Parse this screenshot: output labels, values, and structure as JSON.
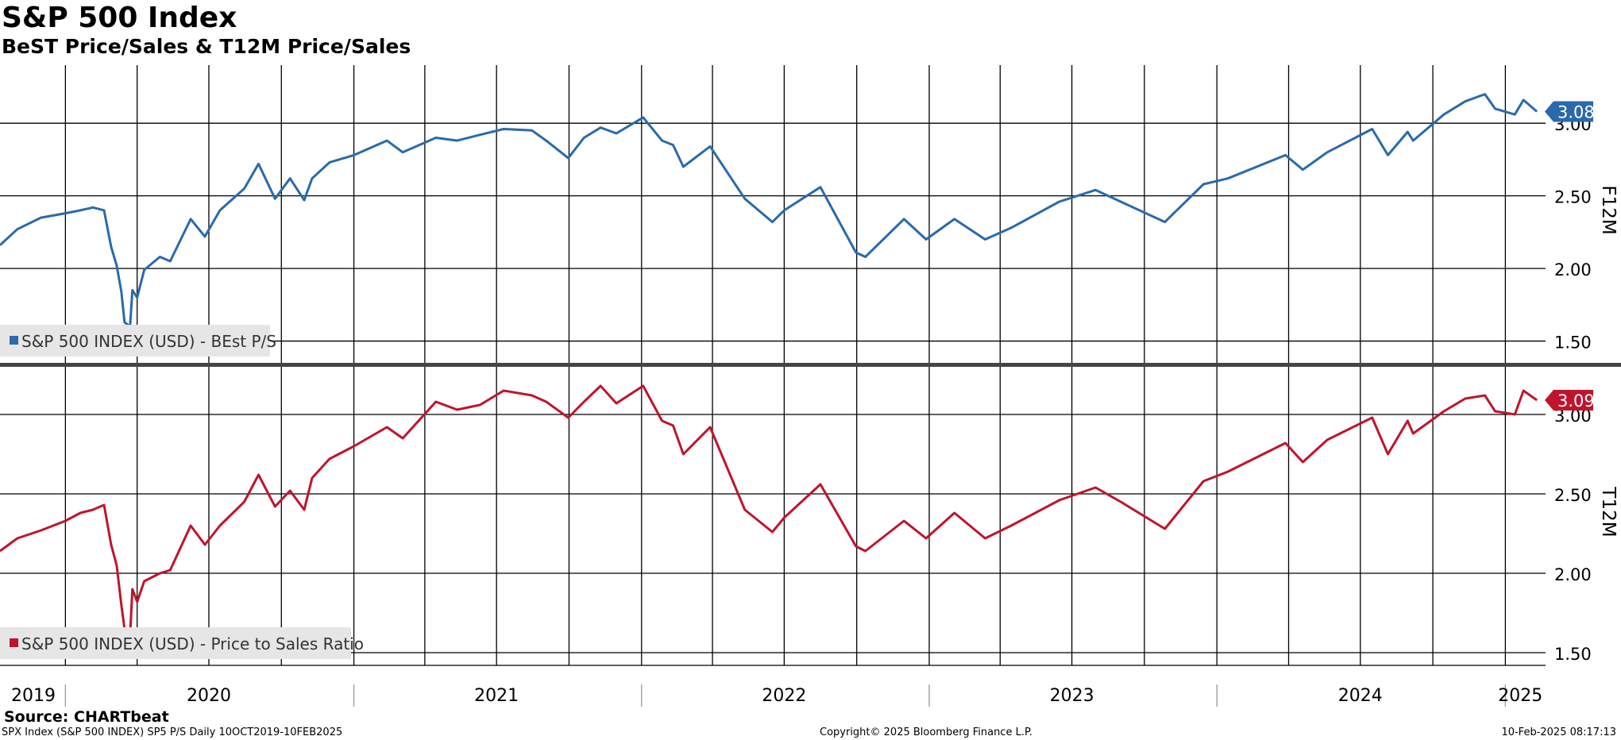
{
  "header": {
    "title": "S&P 500 Index",
    "subtitle": "BeST Price/Sales & T12M Price/Sales"
  },
  "footer": {
    "source": "Source: CHARTbeat",
    "ticker_info": "SPX Index (S&P 500 INDEX) SP5 P/S  Daily 10OCT2019-10FEB2025",
    "copyright": "Copyright© 2025 Bloomberg Finance L.P.",
    "timestamp": "10-Feb-2025 08:17:13"
  },
  "colors": {
    "blue": "#2a6aab",
    "red": "#c0142c",
    "grid": "#000000",
    "legend_bg": "#e6e6e6"
  },
  "chart_data": [
    {
      "type": "line",
      "axis_label": "F12M",
      "ylim": [
        1.35,
        3.4
      ],
      "yticks": [
        "1.50",
        "2.00",
        "2.50",
        "3.00"
      ],
      "last_value": "3.08",
      "legend": "S&P 500 INDEX (USD) - BEst P/S",
      "series": [
        {
          "name": "S&P 500 INDEX (USD) - BEst P/S",
          "color": "#2a6aab",
          "points": [
            [
              "2019-10-10",
              2.16
            ],
            [
              "2019-11-01",
              2.27
            ],
            [
              "2019-12-01",
              2.35
            ],
            [
              "2020-01-01",
              2.38
            ],
            [
              "2020-01-20",
              2.4
            ],
            [
              "2020-02-05",
              2.42
            ],
            [
              "2020-02-19",
              2.4
            ],
            [
              "2020-02-28",
              2.15
            ],
            [
              "2020-03-06",
              2.02
            ],
            [
              "2020-03-12",
              1.84
            ],
            [
              "2020-03-16",
              1.63
            ],
            [
              "2020-03-23",
              1.6
            ],
            [
              "2020-03-26",
              1.85
            ],
            [
              "2020-04-01",
              1.8
            ],
            [
              "2020-04-10",
              1.99
            ],
            [
              "2020-04-30",
              2.08
            ],
            [
              "2020-05-13",
              2.05
            ],
            [
              "2020-06-08",
              2.34
            ],
            [
              "2020-06-26",
              2.22
            ],
            [
              "2020-07-15",
              2.4
            ],
            [
              "2020-08-15",
              2.55
            ],
            [
              "2020-09-02",
              2.72
            ],
            [
              "2020-09-23",
              2.48
            ],
            [
              "2020-10-12",
              2.62
            ],
            [
              "2020-10-30",
              2.47
            ],
            [
              "2020-11-09",
              2.62
            ],
            [
              "2020-12-01",
              2.73
            ],
            [
              "2021-01-01",
              2.78
            ],
            [
              "2021-02-12",
              2.88
            ],
            [
              "2021-03-04",
              2.8
            ],
            [
              "2021-04-15",
              2.9
            ],
            [
              "2021-05-12",
              2.88
            ],
            [
              "2021-06-10",
              2.92
            ],
            [
              "2021-07-10",
              2.96
            ],
            [
              "2021-08-15",
              2.95
            ],
            [
              "2021-09-02",
              2.88
            ],
            [
              "2021-09-30",
              2.76
            ],
            [
              "2021-10-20",
              2.9
            ],
            [
              "2021-11-10",
              2.97
            ],
            [
              "2021-11-30",
              2.93
            ],
            [
              "2022-01-03",
              3.04
            ],
            [
              "2022-01-27",
              2.88
            ],
            [
              "2022-02-10",
              2.85
            ],
            [
              "2022-02-23",
              2.7
            ],
            [
              "2022-03-29",
              2.84
            ],
            [
              "2022-05-12",
              2.48
            ],
            [
              "2022-06-16",
              2.32
            ],
            [
              "2022-07-01",
              2.4
            ],
            [
              "2022-08-16",
              2.56
            ],
            [
              "2022-09-30",
              2.11
            ],
            [
              "2022-10-12",
              2.08
            ],
            [
              "2022-11-30",
              2.34
            ],
            [
              "2022-12-28",
              2.2
            ],
            [
              "2023-02-02",
              2.34
            ],
            [
              "2023-03-13",
              2.2
            ],
            [
              "2023-04-15",
              2.28
            ],
            [
              "2023-06-15",
              2.46
            ],
            [
              "2023-07-31",
              2.54
            ],
            [
              "2023-09-01",
              2.46
            ],
            [
              "2023-10-27",
              2.32
            ],
            [
              "2023-12-15",
              2.58
            ],
            [
              "2024-01-15",
              2.62
            ],
            [
              "2024-03-28",
              2.78
            ],
            [
              "2024-04-19",
              2.68
            ],
            [
              "2024-05-20",
              2.8
            ],
            [
              "2024-07-16",
              2.96
            ],
            [
              "2024-08-05",
              2.78
            ],
            [
              "2024-08-30",
              2.94
            ],
            [
              "2024-09-06",
              2.88
            ],
            [
              "2024-10-15",
              3.06
            ],
            [
              "2024-11-11",
              3.15
            ],
            [
              "2024-12-06",
              3.2
            ],
            [
              "2024-12-19",
              3.1
            ],
            [
              "2025-01-13",
              3.06
            ],
            [
              "2025-01-24",
              3.16
            ],
            [
              "2025-02-10",
              3.08
            ]
          ]
        }
      ]
    },
    {
      "type": "line",
      "axis_label": "T12M",
      "ylim": [
        1.42,
        3.3
      ],
      "yticks": [
        "1.50",
        "2.00",
        "2.50",
        "3.00"
      ],
      "last_value": "3.09",
      "legend": "S&P 500 INDEX (USD) - Price to Sales Ratio",
      "series": [
        {
          "name": "S&P 500 INDEX (USD) - Price to Sales Ratio",
          "color": "#c0142c",
          "points": [
            [
              "2019-10-10",
              2.14
            ],
            [
              "2019-11-01",
              2.22
            ],
            [
              "2019-12-01",
              2.27
            ],
            [
              "2020-01-01",
              2.33
            ],
            [
              "2020-01-20",
              2.38
            ],
            [
              "2020-02-05",
              2.4
            ],
            [
              "2020-02-19",
              2.43
            ],
            [
              "2020-02-28",
              2.18
            ],
            [
              "2020-03-06",
              2.05
            ],
            [
              "2020-03-12",
              1.8
            ],
            [
              "2020-03-16",
              1.65
            ],
            [
              "2020-03-23",
              1.6
            ],
            [
              "2020-03-26",
              1.9
            ],
            [
              "2020-04-01",
              1.82
            ],
            [
              "2020-04-10",
              1.95
            ],
            [
              "2020-04-30",
              2.0
            ],
            [
              "2020-05-13",
              2.02
            ],
            [
              "2020-06-08",
              2.3
            ],
            [
              "2020-06-26",
              2.18
            ],
            [
              "2020-07-15",
              2.3
            ],
            [
              "2020-08-15",
              2.45
            ],
            [
              "2020-09-02",
              2.62
            ],
            [
              "2020-09-23",
              2.42
            ],
            [
              "2020-10-12",
              2.52
            ],
            [
              "2020-10-30",
              2.4
            ],
            [
              "2020-11-09",
              2.6
            ],
            [
              "2020-12-01",
              2.72
            ],
            [
              "2021-01-01",
              2.8
            ],
            [
              "2021-02-12",
              2.92
            ],
            [
              "2021-03-04",
              2.85
            ],
            [
              "2021-04-15",
              3.08
            ],
            [
              "2021-05-12",
              3.03
            ],
            [
              "2021-06-10",
              3.06
            ],
            [
              "2021-07-10",
              3.15
            ],
            [
              "2021-08-15",
              3.12
            ],
            [
              "2021-09-02",
              3.08
            ],
            [
              "2021-09-30",
              2.98
            ],
            [
              "2021-10-20",
              3.08
            ],
            [
              "2021-11-10",
              3.18
            ],
            [
              "2021-11-30",
              3.07
            ],
            [
              "2022-01-03",
              3.18
            ],
            [
              "2022-01-27",
              2.96
            ],
            [
              "2022-02-10",
              2.93
            ],
            [
              "2022-02-23",
              2.75
            ],
            [
              "2022-03-29",
              2.92
            ],
            [
              "2022-05-12",
              2.4
            ],
            [
              "2022-06-16",
              2.26
            ],
            [
              "2022-07-01",
              2.35
            ],
            [
              "2022-08-16",
              2.56
            ],
            [
              "2022-09-30",
              2.17
            ],
            [
              "2022-10-12",
              2.14
            ],
            [
              "2022-11-30",
              2.33
            ],
            [
              "2022-12-28",
              2.22
            ],
            [
              "2023-02-02",
              2.38
            ],
            [
              "2023-03-13",
              2.22
            ],
            [
              "2023-04-15",
              2.3
            ],
            [
              "2023-06-15",
              2.46
            ],
            [
              "2023-07-31",
              2.54
            ],
            [
              "2023-09-01",
              2.45
            ],
            [
              "2023-10-27",
              2.28
            ],
            [
              "2023-12-15",
              2.58
            ],
            [
              "2024-01-15",
              2.64
            ],
            [
              "2024-03-28",
              2.82
            ],
            [
              "2024-04-19",
              2.7
            ],
            [
              "2024-05-20",
              2.84
            ],
            [
              "2024-07-16",
              2.98
            ],
            [
              "2024-08-05",
              2.75
            ],
            [
              "2024-08-30",
              2.96
            ],
            [
              "2024-09-06",
              2.88
            ],
            [
              "2024-10-15",
              3.02
            ],
            [
              "2024-11-11",
              3.1
            ],
            [
              "2024-12-06",
              3.12
            ],
            [
              "2024-12-19",
              3.02
            ],
            [
              "2025-01-13",
              3.0
            ],
            [
              "2025-01-24",
              3.15
            ],
            [
              "2025-02-10",
              3.09
            ]
          ]
        }
      ]
    }
  ],
  "x_axis": {
    "labels": [
      {
        "text": "2019",
        "date": "2019-10-10"
      },
      {
        "text": "2020",
        "date": "2020-07-01"
      },
      {
        "text": "2021",
        "date": "2021-07-01"
      },
      {
        "text": "2022",
        "date": "2022-07-01"
      },
      {
        "text": "2023",
        "date": "2023-07-01"
      },
      {
        "text": "2024",
        "date": "2024-07-01"
      },
      {
        "text": "2025",
        "date": "2025-01-20"
      }
    ]
  }
}
